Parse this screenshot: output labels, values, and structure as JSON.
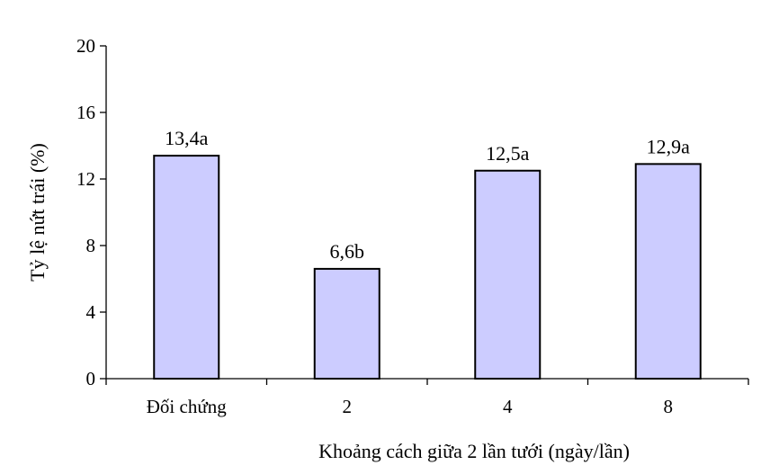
{
  "chart_data": {
    "type": "bar",
    "title": "",
    "xlabel": "Khoảng cách giữa 2 lần tưới (ngày/lần)",
    "ylabel": "Tỷ lệ nứt trái (%)",
    "categories": [
      "Đối chứng",
      "2",
      "4",
      "8"
    ],
    "values": [
      13.4,
      6.6,
      12.5,
      12.9
    ],
    "data_labels": [
      "13,4a",
      "6,6b",
      "12,5a",
      "12,9a"
    ],
    "ylim": [
      0,
      20
    ],
    "yticks": [
      0,
      4,
      8,
      12,
      16,
      20
    ],
    "bar_color": "#ccccff",
    "grid": false,
    "legend": "none"
  }
}
